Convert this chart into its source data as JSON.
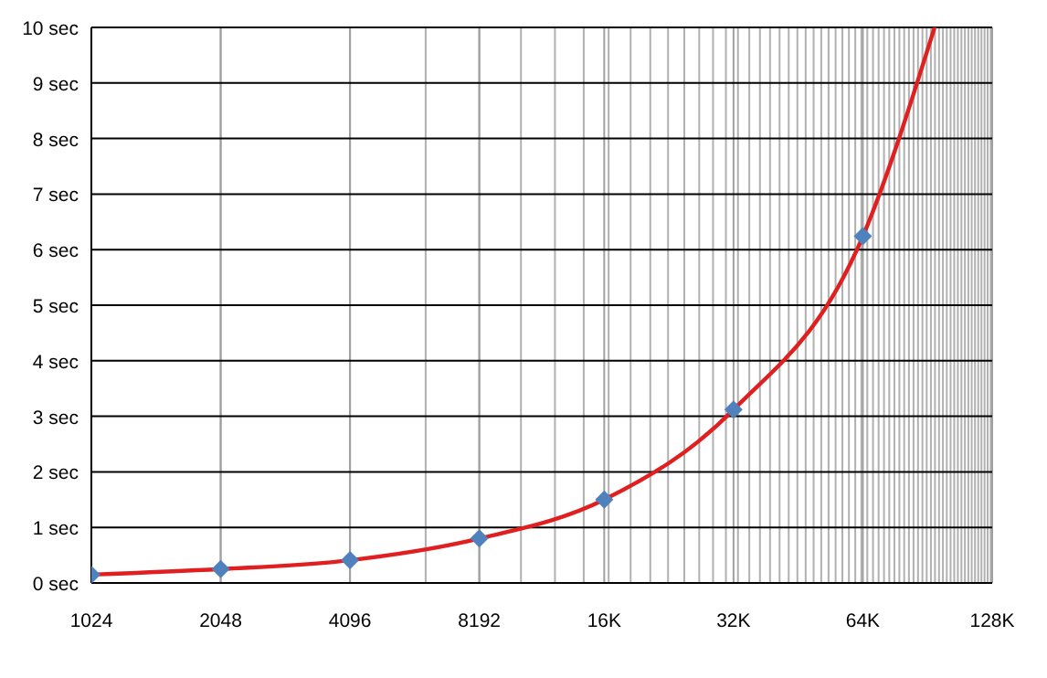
{
  "chart_data": {
    "type": "line",
    "log": "x",
    "grid": true,
    "xlim": [
      1024,
      128000
    ],
    "xticks": [
      1024,
      2048,
      4096,
      8192,
      {
        "value": 16000,
        "label": "16K"
      },
      {
        "value": 32000,
        "label": "32K"
      },
      {
        "value": 64000,
        "label": "64K"
      },
      {
        "value": 128000,
        "label": "128K"
      }
    ],
    "ylim": [
      0,
      10
    ],
    "yticks": [
      {
        "value": 0,
        "label": "0 sec"
      },
      {
        "value": 1,
        "label": "1 sec"
      },
      {
        "value": 2,
        "label": "2 sec"
      },
      {
        "value": 3,
        "label": "3 sec"
      },
      {
        "value": 4,
        "label": "4 sec"
      },
      {
        "value": 5,
        "label": "5 sec"
      },
      {
        "value": 6,
        "label": "6 sec"
      },
      {
        "value": 7,
        "label": "7 sec"
      },
      {
        "value": 8,
        "label": "8 sec"
      },
      {
        "value": 9,
        "label": "9 sec"
      },
      {
        "value": 10,
        "label": "10 sec"
      }
    ],
    "series": [
      {
        "type": "line",
        "color": "#e02020",
        "marker": "none",
        "x": [
          1024,
          2048,
          4096,
          8192,
          16000,
          32000,
          64000,
          94000
        ],
        "values": [
          0.15,
          0.25,
          0.41,
          0.8,
          1.5,
          3.12,
          6.24,
          10
        ]
      },
      {
        "type": "scatter",
        "color": "#4f81bd",
        "marker": "diamond",
        "x": [
          1024,
          2048,
          4096,
          8192,
          16000,
          32000,
          64000
        ],
        "values": [
          0.15,
          0.25,
          0.41,
          0.8,
          1.5,
          3.12,
          6.24
        ]
      }
    ]
  }
}
